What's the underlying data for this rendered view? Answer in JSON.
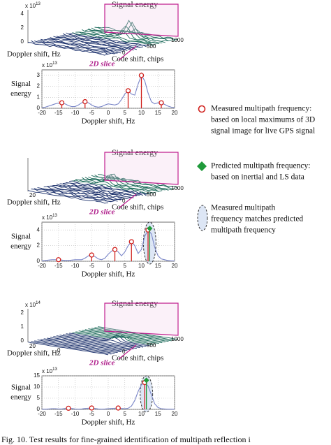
{
  "panels": [
    {
      "surface": {
        "title": "Signal energy",
        "scale": {
          "base": "x 10",
          "power": "13"
        },
        "z_ticks": [
          "0",
          "2",
          "4"
        ],
        "doppler_label": "Doppler shift, Hz",
        "code_label": "Code shift, chips",
        "doppler_ticks": [],
        "code_ticks": [
          "0",
          "500",
          "1000"
        ],
        "slice_label": "2D slice"
      },
      "chart_data": {
        "type": "line",
        "y_label": [
          "Signal",
          "energy"
        ],
        "x_label": "Doppler shift, Hz",
        "scale": {
          "base": "x 10",
          "power": "13"
        },
        "xlim": [
          -20,
          20
        ],
        "ylim": [
          0,
          3.5
        ],
        "xticks": [
          -20,
          -15,
          -10,
          -5,
          0,
          5,
          10,
          15,
          20
        ],
        "yticks": [
          0,
          1,
          2,
          3
        ],
        "grid": true,
        "color": "#7a86c8",
        "x": [
          -20,
          -19,
          -18,
          -17,
          -16,
          -15,
          -14,
          -13,
          -12,
          -11,
          -10,
          -9,
          -8,
          -7,
          -6,
          -5,
          -4,
          -3,
          -2,
          -1,
          0,
          1,
          2,
          3,
          4,
          5,
          6,
          7,
          8,
          9,
          10,
          11,
          12,
          13,
          14,
          15,
          16,
          17,
          18,
          19,
          20
        ],
        "values": [
          0.05,
          0.1,
          0.2,
          0.3,
          0.4,
          0.48,
          0.5,
          0.4,
          0.25,
          0.15,
          0.15,
          0.3,
          0.5,
          0.6,
          0.5,
          0.3,
          0.15,
          0.1,
          0.15,
          0.3,
          0.4,
          0.35,
          0.3,
          0.4,
          0.8,
          1.3,
          1.6,
          1.3,
          1.2,
          2.2,
          3.0,
          2.5,
          1.4,
          0.6,
          0.4,
          0.5,
          0.5,
          0.35,
          0.2,
          0.1,
          0.05
        ],
        "measured": {
          "x": [
            -14,
            -7,
            6,
            10,
            16
          ],
          "y": [
            0.5,
            0.6,
            1.6,
            3.0,
            0.5
          ],
          "color": "#d0201c"
        }
      }
    },
    {
      "surface": {
        "title": "Signal energy",
        "scale": null,
        "z_ticks": [],
        "doppler_label": "Doppler shift, Hz",
        "code_label": "Code shift, chips",
        "doppler_ticks": [
          "20"
        ],
        "code_ticks": [
          "0",
          "500",
          "1000"
        ],
        "slice_label": "2D slice"
      },
      "chart_data": {
        "type": "line",
        "y_label": [
          "Signal",
          "energy"
        ],
        "x_label": "Doppler shift, Hz",
        "scale": {
          "base": "x 10",
          "power": "13"
        },
        "xlim": [
          -20,
          20
        ],
        "ylim": [
          0,
          5
        ],
        "xticks": [
          -20,
          -15,
          -10,
          -5,
          0,
          5,
          10,
          15,
          20
        ],
        "yticks": [
          0,
          2,
          4
        ],
        "grid": true,
        "color": "#7a86c8",
        "x": [
          -20,
          -19,
          -18,
          -17,
          -16,
          -15,
          -14,
          -13,
          -12,
          -11,
          -10,
          -9,
          -8,
          -7,
          -6,
          -5,
          -4,
          -3,
          -2,
          -1,
          0,
          1,
          2,
          3,
          4,
          5,
          6,
          7,
          8,
          9,
          10,
          11,
          12,
          13,
          14,
          15,
          16,
          17,
          18,
          19,
          20
        ],
        "values": [
          0.05,
          0.1,
          0.15,
          0.2,
          0.2,
          0.2,
          0.15,
          0.1,
          0.1,
          0.15,
          0.2,
          0.2,
          0.2,
          0.4,
          0.7,
          0.8,
          0.6,
          0.3,
          0.2,
          0.4,
          0.9,
          1.3,
          1.5,
          1.2,
          0.7,
          1.2,
          2.0,
          2.5,
          2.0,
          1.0,
          1.5,
          3.2,
          4.0,
          3.5,
          1.8,
          0.7,
          0.3,
          0.2,
          0.1,
          0.05,
          0.05
        ],
        "measured": {
          "x": [
            -15,
            -5,
            2,
            7,
            12
          ],
          "y": [
            0.2,
            0.8,
            1.5,
            2.5,
            4.0
          ],
          "color": "#d0201c"
        },
        "predicted": {
          "x": 12.5,
          "y": 4.2,
          "color": "#1f9a3a"
        }
      }
    },
    {
      "surface": {
        "title": "Signal energy",
        "scale": {
          "base": "x 10",
          "power": "14"
        },
        "z_ticks": [
          "0",
          "1",
          "2"
        ],
        "doppler_label": "Doppler shift, Hz",
        "code_label": "Code shift, chips",
        "doppler_ticks": [
          "20",
          "0"
        ],
        "code_ticks": [
          "0",
          "500",
          "1000"
        ],
        "slice_label": "2D slice"
      },
      "chart_data": {
        "type": "line",
        "y_label": [
          "Signal",
          "energy"
        ],
        "x_label": "Doppler shift, Hz",
        "scale": {
          "base": "x 10",
          "power": "13"
        },
        "xlim": [
          -20,
          20
        ],
        "ylim": [
          0,
          15
        ],
        "xticks": [
          -20,
          -15,
          -10,
          -5,
          0,
          5,
          10,
          15,
          20
        ],
        "yticks": [
          0,
          5,
          10,
          15
        ],
        "grid": true,
        "color": "#7a86c8",
        "x": [
          -20,
          -19,
          -18,
          -17,
          -16,
          -15,
          -14,
          -13,
          -12,
          -11,
          -10,
          -9,
          -8,
          -7,
          -6,
          -5,
          -4,
          -3,
          -2,
          -1,
          0,
          1,
          2,
          3,
          4,
          5,
          6,
          7,
          8,
          9,
          10,
          11,
          12,
          13,
          14,
          15,
          16,
          17,
          18,
          19,
          20
        ],
        "values": [
          0.1,
          0.1,
          0.2,
          0.3,
          0.3,
          0.2,
          0.2,
          0.4,
          0.5,
          0.4,
          0.2,
          0.1,
          0.2,
          0.4,
          0.5,
          0.6,
          0.4,
          0.2,
          0.1,
          0.2,
          0.3,
          0.4,
          0.5,
          0.6,
          0.4,
          0.3,
          0.5,
          1.5,
          4,
          8,
          11,
          12,
          10.5,
          6.5,
          2.5,
          0.8,
          0.3,
          0.2,
          0.1,
          0.1,
          0.05
        ],
        "measured": {
          "x": [
            -12,
            -5,
            3,
            11
          ],
          "y": [
            0.5,
            0.6,
            0.6,
            12
          ],
          "color": "#d0201c"
        },
        "predicted": {
          "x": 11.5,
          "y": 13,
          "color": "#1f9a3a"
        }
      }
    }
  ],
  "legend": {
    "measured": [
      "Measured multipath frequency:",
      "based on local maximums of 3D",
      "signal image for live GPS signal"
    ],
    "predicted": [
      "Predicted multipath frequency:",
      "based on inertial and LS data"
    ],
    "match": [
      "Measured multipath",
      "frequency matches predicted",
      "multipath frequency"
    ]
  },
  "caption": "Fig. 10.   Test results for fine-grained identification of multipath reflection i"
}
